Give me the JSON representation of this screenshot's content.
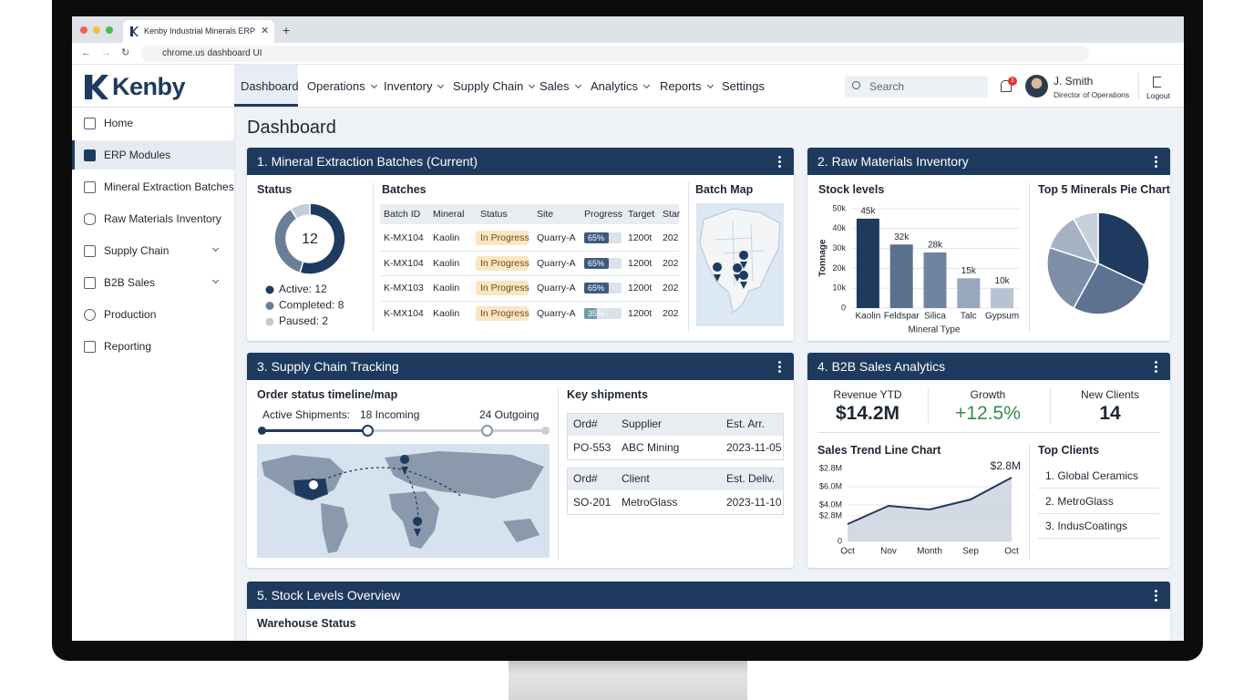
{
  "browser": {
    "tab_title": "Kenby Industrial Minerals ERP",
    "url": "chrome.us dashboard UI"
  },
  "header": {
    "logo": "Kenby",
    "nav": [
      "Dashboard",
      "Operations",
      "Inventory",
      "Supply Chain",
      "Sales",
      "Analytics",
      "Reports",
      "Settings"
    ],
    "search": "Search",
    "notifications": 1,
    "user_name": "J. Smith",
    "user_role": "Director of Operations",
    "logout": "Logout"
  },
  "sidebar": [
    "Home",
    "ERP Modules",
    "Mineral Extraction Batches",
    "Raw Materials Inventory",
    "Supply Chain",
    "B2B Sales",
    "Production",
    "Reporting"
  ],
  "page_title": "Dashboard",
  "cards": {
    "batches": {
      "title": "1. Mineral Extraction Batches (Current)",
      "status_label": "Status",
      "table_label": "Batches",
      "map_label": "Batch Map",
      "columns": [
        "Batch ID",
        "Mineral",
        "Status",
        "Site",
        "Progress",
        "Target",
        "Star"
      ],
      "rows": [
        {
          "id": "K-MX104",
          "mineral": "Kaolin",
          "status": "In Progress",
          "site": "Quarry-A",
          "progress": 65,
          "progress_label": "65%",
          "target": "1200t",
          "start": "202"
        },
        {
          "id": "K-MX104",
          "mineral": "Kaolin",
          "status": "In Progress",
          "site": "Quarry-A",
          "progress": 65,
          "progress_label": "65%",
          "target": "1200t",
          "start": "202"
        },
        {
          "id": "K-MX103",
          "mineral": "Kaolin",
          "status": "In Progress",
          "site": "Quarry-A",
          "progress": 65,
          "progress_label": "65%",
          "target": "1200t",
          "start": "202"
        },
        {
          "id": "K-MX104",
          "mineral": "Kaolin",
          "status": "In Progress",
          "site": "Quarry-A",
          "progress": 35,
          "progress_label": "35%",
          "target": "1200t",
          "start": "202"
        }
      ]
    },
    "inventory": {
      "title": "2. Raw Materials Inventory",
      "stock_label": "Stock levels",
      "pie_label": "Top 5 Minerals Pie Chart"
    },
    "supply": {
      "title": "3. Supply Chain Tracking",
      "timeline_label": "Order status timeline/map",
      "active": "Active Shipments:",
      "incoming": "18 Incoming",
      "outgoing": "24 Outgoing",
      "shipments_label": "Key shipments",
      "inbound": {
        "columns": [
          "Ord#",
          "Supplier",
          "Est. Arr."
        ],
        "row": [
          "PO-553",
          "ABC Mining",
          "2023-11-05"
        ]
      },
      "outbound": {
        "columns": [
          "Ord#",
          "Client",
          "Est. Deliv."
        ],
        "row": [
          "SO-201",
          "MetroGlass",
          "2023-11-10"
        ]
      }
    },
    "sales": {
      "title": "4. B2B Sales Analytics",
      "kpis": [
        {
          "label": "Revenue YTD",
          "value": "$14.2M"
        },
        {
          "label": "Growth",
          "value": "+12.5%"
        },
        {
          "label": "New Clients",
          "value": 14
        }
      ],
      "top_clients_label": "Top Clients",
      "top_clients": [
        "1. Global Ceramics",
        "2. MetroGlass",
        "3. IndusCoatings"
      ]
    },
    "stock": {
      "title": "5. Stock Levels Overview",
      "warehouse_label": "Warehouse Status"
    }
  },
  "chart_data": [
    {
      "type": "donut",
      "center_value": 12,
      "categories": [
        "Active: 12",
        "Completed: 8",
        "Paused: 2"
      ],
      "values": [
        12,
        8,
        2
      ],
      "colors": [
        "#1e3a5f",
        "#6b7e99",
        "#c3cbd6"
      ]
    },
    {
      "type": "bar",
      "ylabel": "Tonnage",
      "xlabel": "Mineral Type",
      "categories": [
        "Kaolin",
        "Feldspar",
        "Silica",
        "Talc",
        "Gypsum"
      ],
      "values": [
        45000,
        32000,
        28000,
        15000,
        10000
      ],
      "value_labels": [
        "45k",
        "32k",
        "28k",
        "15k",
        "10k"
      ],
      "colors": [
        "#1e3a5f",
        "#5b7190",
        "#6f84a1",
        "#97a7bd",
        "#b7c3d3"
      ],
      "ylim": [
        0,
        50000
      ],
      "yticks": [
        0,
        {
          "value": 10000,
          "label": "10k"
        },
        {
          "value": 20000,
          "label": "20k"
        },
        {
          "value": 30000,
          "label": "30k"
        },
        {
          "value": 40000,
          "label": "40k"
        },
        {
          "value": 50000,
          "label": "50k"
        }
      ],
      "grid": true
    },
    {
      "type": "pie",
      "values": [
        32,
        26,
        22,
        12,
        8
      ],
      "colors": [
        "#1e3a5f",
        "#5c7290",
        "#7e8fa8",
        "#a5b2c4",
        "#c8d0dc"
      ]
    },
    {
      "type": "line",
      "title": "Sales Trend Line Chart",
      "categories": [
        "Oct",
        "Nov",
        "Month",
        "Sep",
        "Oct"
      ],
      "values": [
        1.9,
        3.9,
        3.5,
        4.6,
        7.0
      ],
      "color": "#1e3a5f",
      "ylim": [
        0,
        8
      ],
      "yticks": [
        0,
        {
          "value": 2.8,
          "label": "$2.8M"
        },
        {
          "value": 4,
          "label": "$4.0M"
        },
        {
          "value": 6,
          "label": "$6.0M"
        }
      ],
      "annotations": [
        "$2.8M",
        "$2.8M"
      ],
      "grid": true
    }
  ]
}
